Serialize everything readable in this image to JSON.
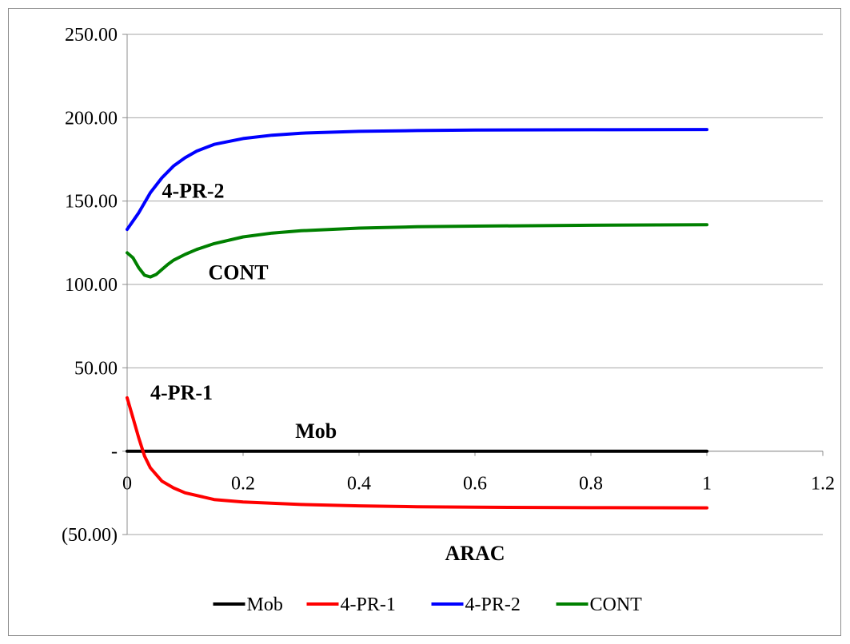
{
  "chart_data": {
    "type": "line",
    "xlabel": "ARAC",
    "ylabel": "",
    "xlim": [
      0,
      1.2
    ],
    "ylim": [
      -50,
      250
    ],
    "x_ticks": [
      0,
      0.2,
      0.4,
      0.6,
      0.8,
      1,
      1.2
    ],
    "x_tick_labels": [
      "0",
      "0.2",
      "0.4",
      "0.6",
      "0.8",
      "1",
      "1.2"
    ],
    "y_ticks": [
      250,
      200,
      150,
      100,
      50,
      0,
      -50
    ],
    "y_tick_labels": [
      "250.00",
      "200.00",
      "150.00",
      "100.00",
      "50.00",
      "-",
      "(50.00)"
    ],
    "grid": "horizontal",
    "legend_position": "bottom",
    "series": [
      {
        "name": "Mob",
        "color": "#000000",
        "x": [
          0,
          1
        ],
        "y": [
          0,
          0
        ]
      },
      {
        "name": "4-PR-1",
        "color": "#ff0000",
        "x": [
          0,
          0.01,
          0.02,
          0.03,
          0.04,
          0.05,
          0.06,
          0.08,
          0.1,
          0.15,
          0.2,
          0.3,
          0.4,
          0.5,
          0.6,
          0.8,
          1.0
        ],
        "y": [
          32,
          20,
          8,
          -3,
          -10,
          -14,
          -18,
          -22,
          -25,
          -29,
          -30.5,
          -32,
          -32.8,
          -33.3,
          -33.6,
          -33.9,
          -34
        ]
      },
      {
        "name": "4-PR-2",
        "color": "#0000ff",
        "x": [
          0,
          0.02,
          0.04,
          0.06,
          0.08,
          0.1,
          0.12,
          0.15,
          0.2,
          0.25,
          0.3,
          0.4,
          0.5,
          0.6,
          0.8,
          1.0
        ],
        "y": [
          133,
          143,
          155,
          164,
          171,
          176,
          180,
          184,
          187.5,
          189.5,
          190.7,
          191.8,
          192.3,
          192.6,
          192.8,
          192.9
        ]
      },
      {
        "name": "CONT",
        "color": "#008000",
        "x": [
          0,
          0.01,
          0.02,
          0.03,
          0.04,
          0.05,
          0.06,
          0.07,
          0.08,
          0.1,
          0.12,
          0.15,
          0.2,
          0.25,
          0.3,
          0.4,
          0.5,
          0.6,
          0.8,
          1.0
        ],
        "y": [
          119,
          116,
          110,
          105.5,
          104.5,
          106,
          109,
          112,
          114.5,
          118,
          121,
          124.5,
          128.5,
          130.8,
          132.2,
          133.8,
          134.6,
          135,
          135.5,
          135.8
        ]
      }
    ],
    "annotations": [
      {
        "text": "4-PR-2",
        "x": 0.06,
        "y": 152
      },
      {
        "text": "CONT",
        "x": 0.14,
        "y": 103
      },
      {
        "text": "4-PR-1",
        "x": 0.04,
        "y": 31
      },
      {
        "text": "Mob",
        "x": 0.29,
        "y": 8
      }
    ]
  }
}
